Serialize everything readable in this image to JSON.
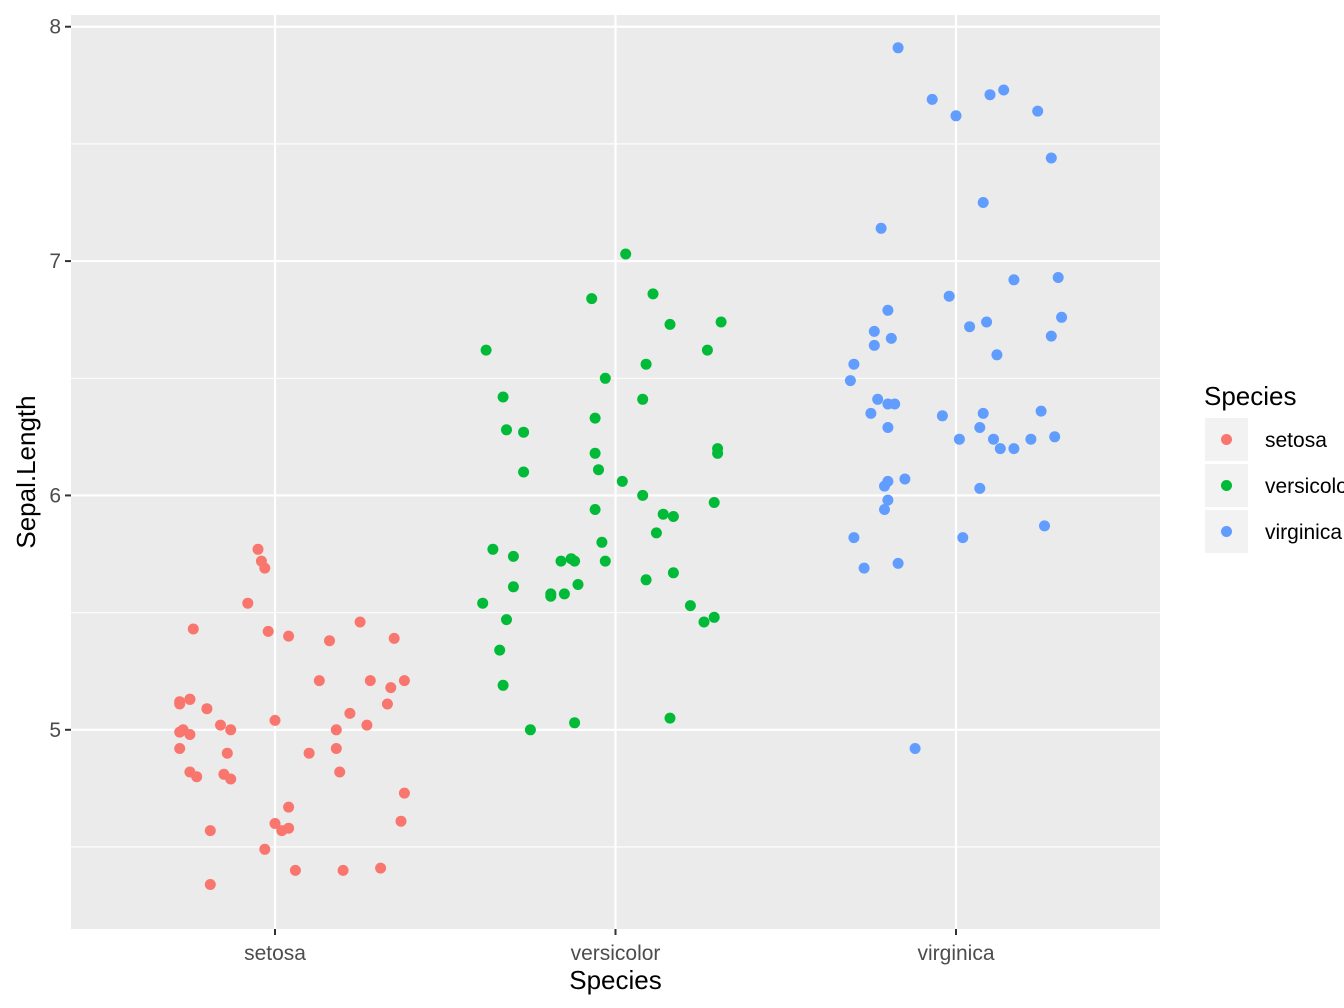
{
  "chart_data": {
    "type": "scatter",
    "title": "",
    "xlabel": "Species",
    "ylabel": "Sepal.Length",
    "categories": [
      "setosa",
      "versicolor",
      "virginica"
    ],
    "y_ticks": [
      5,
      6,
      7,
      8
    ],
    "y_tick_labels": [
      "5",
      "6",
      "7",
      "8"
    ],
    "ylim": [
      4.15,
      8.05
    ],
    "grid": true,
    "jitter": true,
    "legend": {
      "title": "Species",
      "position": "right",
      "entries": [
        "setosa",
        "versicolor",
        "virginica"
      ]
    },
    "colors": {
      "setosa": "#F8766D",
      "versicolor": "#00BA38",
      "virginica": "#619CFF",
      "panel": "#EBEBEB",
      "grid": "#FFFFFF"
    },
    "series": [
      {
        "name": "setosa",
        "points": [
          [
            -0.05,
            5.77
          ],
          [
            0.25,
            5.46
          ],
          [
            0.22,
            5.07
          ],
          [
            0.13,
            5.21
          ],
          [
            -0.13,
            5.0
          ],
          [
            0.04,
            4.67
          ],
          [
            0.04,
            4.58
          ],
          [
            -0.28,
            5.11
          ],
          [
            -0.2,
            5.09
          ],
          [
            0.38,
            5.21
          ],
          [
            0.27,
            5.02
          ],
          [
            0.16,
            5.38
          ],
          [
            -0.19,
            4.57
          ],
          [
            0.0,
            4.6
          ],
          [
            -0.25,
            5.13
          ],
          [
            -0.14,
            4.9
          ],
          [
            -0.25,
            4.82
          ],
          [
            0.38,
            4.73
          ],
          [
            -0.08,
            5.54
          ],
          [
            -0.25,
            5.13
          ],
          [
            -0.19,
            4.34
          ],
          [
            -0.28,
            5.12
          ],
          [
            0.28,
            5.21
          ],
          [
            -0.03,
            4.49
          ],
          [
            -0.13,
            4.79
          ],
          [
            -0.16,
            5.02
          ],
          [
            0.33,
            5.11
          ],
          [
            0.06,
            4.4
          ],
          [
            -0.04,
            5.72
          ],
          [
            -0.02,
            5.42
          ],
          [
            0.18,
            4.92
          ],
          [
            0.18,
            5.0
          ],
          [
            -0.28,
            4.92
          ],
          [
            0.2,
            4.4
          ],
          [
            -0.15,
            4.81
          ],
          [
            0.02,
            4.57
          ],
          [
            0.34,
            5.18
          ],
          [
            -0.27,
            5.0
          ],
          [
            0.0,
            5.04
          ],
          [
            0.37,
            4.61
          ],
          [
            -0.03,
            5.69
          ],
          [
            -0.28,
            4.99
          ],
          [
            -0.25,
            4.98
          ],
          [
            0.04,
            5.4
          ],
          [
            -0.24,
            5.43
          ],
          [
            0.19,
            4.82
          ],
          [
            -0.23,
            4.8
          ],
          [
            0.31,
            4.41
          ],
          [
            0.35,
            5.39
          ],
          [
            0.1,
            4.9
          ]
        ]
      },
      {
        "name": "versicolor",
        "points": [
          [
            -0.39,
            5.54
          ],
          [
            -0.33,
            5.19
          ],
          [
            -0.06,
            5.94
          ],
          [
            -0.32,
            6.28
          ],
          [
            -0.13,
            5.73
          ],
          [
            0.11,
            6.86
          ],
          [
            0.12,
            5.84
          ],
          [
            0.31,
            6.74
          ],
          [
            0.03,
            7.03
          ],
          [
            -0.05,
            6.11
          ],
          [
            0.08,
            6.0
          ],
          [
            -0.3,
            5.61
          ],
          [
            -0.27,
            6.27
          ],
          [
            -0.12,
            5.03
          ],
          [
            0.16,
            6.73
          ],
          [
            -0.15,
            5.58
          ],
          [
            -0.25,
            5.0
          ],
          [
            -0.12,
            5.72
          ],
          [
            -0.38,
            6.62
          ],
          [
            0.02,
            6.06
          ],
          [
            0.29,
            5.48
          ],
          [
            -0.33,
            6.42
          ],
          [
            -0.27,
            6.1
          ],
          [
            -0.07,
            6.84
          ],
          [
            0.3,
            6.2
          ],
          [
            0.16,
            5.05
          ],
          [
            -0.16,
            5.72
          ],
          [
            -0.04,
            5.8
          ],
          [
            0.14,
            5.92
          ],
          [
            0.09,
            5.64
          ],
          [
            -0.36,
            5.77
          ],
          [
            -0.32,
            5.47
          ],
          [
            0.22,
            5.53
          ],
          [
            -0.11,
            5.62
          ],
          [
            -0.06,
            6.33
          ],
          [
            0.08,
            6.41
          ],
          [
            -0.03,
            5.72
          ],
          [
            0.17,
            5.91
          ],
          [
            -0.3,
            5.74
          ],
          [
            -0.19,
            5.58
          ],
          [
            0.26,
            5.46
          ],
          [
            -0.06,
            6.18
          ],
          [
            -0.03,
            6.5
          ],
          [
            0.29,
            5.97
          ],
          [
            0.27,
            6.62
          ],
          [
            0.17,
            5.67
          ],
          [
            0.09,
            6.56
          ],
          [
            -0.19,
            5.57
          ],
          [
            0.3,
            6.18
          ],
          [
            -0.34,
            5.34
          ]
        ]
      },
      {
        "name": "virginica",
        "points": [
          [
            -0.2,
            6.29
          ],
          [
            -0.3,
            5.82
          ],
          [
            -0.07,
            7.69
          ],
          [
            -0.22,
            7.14
          ],
          [
            -0.15,
            6.07
          ],
          [
            0.14,
            7.73
          ],
          [
            -0.12,
            4.92
          ],
          [
            0.24,
            7.64
          ],
          [
            -0.04,
            6.34
          ],
          [
            0.09,
            6.74
          ],
          [
            0.22,
            6.24
          ],
          [
            -0.19,
            6.67
          ],
          [
            0.25,
            6.36
          ],
          [
            -0.21,
            6.04
          ],
          [
            0.02,
            5.82
          ],
          [
            -0.23,
            6.41
          ],
          [
            -0.2,
            6.39
          ],
          [
            0.28,
            7.44
          ],
          [
            0.08,
            7.25
          ],
          [
            0.07,
            6.03
          ],
          [
            0.12,
            6.6
          ],
          [
            -0.27,
            5.69
          ],
          [
            0.0,
            7.62
          ],
          [
            0.17,
            6.2
          ],
          [
            -0.2,
            6.79
          ],
          [
            0.17,
            6.92
          ],
          [
            0.07,
            6.29
          ],
          [
            0.29,
            6.25
          ],
          [
            -0.18,
            6.39
          ],
          [
            -0.24,
            6.64
          ],
          [
            0.11,
            6.24
          ],
          [
            -0.17,
            7.91
          ],
          [
            -0.31,
            6.49
          ],
          [
            0.13,
            6.2
          ],
          [
            -0.2,
            6.06
          ],
          [
            0.1,
            7.71
          ],
          [
            0.08,
            6.35
          ],
          [
            -0.25,
            6.35
          ],
          [
            -0.2,
            5.98
          ],
          [
            -0.02,
            6.85
          ],
          [
            0.28,
            6.68
          ],
          [
            0.04,
            6.72
          ],
          [
            -0.17,
            5.71
          ],
          [
            0.31,
            6.76
          ],
          [
            -0.24,
            6.7
          ],
          [
            0.3,
            6.93
          ],
          [
            -0.3,
            6.56
          ],
          [
            0.01,
            6.24
          ],
          [
            0.26,
            5.87
          ],
          [
            -0.21,
            5.94
          ]
        ]
      }
    ]
  }
}
